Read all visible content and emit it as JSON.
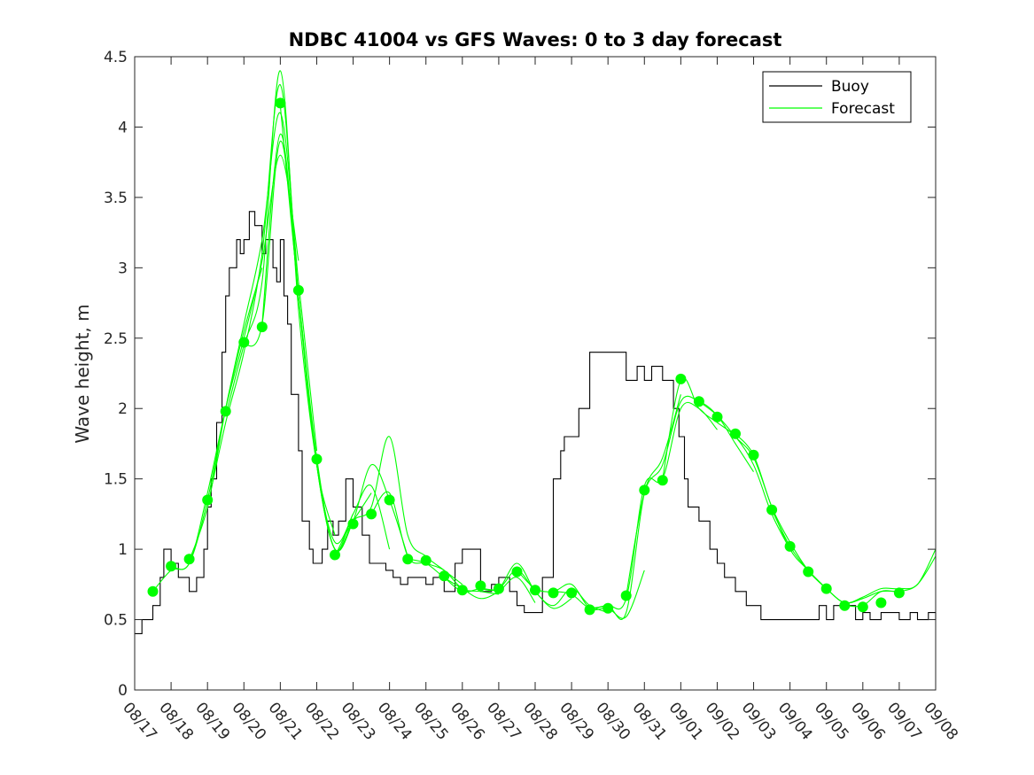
{
  "chart_data": {
    "type": "line",
    "title": "NDBC 41004 vs GFS Waves: 0 to 3 day forecast",
    "xlabel": "",
    "ylabel": "Wave height, m",
    "xlim": [
      0,
      22
    ],
    "ylim": [
      0,
      4.5
    ],
    "yticks": [
      0,
      0.5,
      1,
      1.5,
      2,
      2.5,
      3,
      3.5,
      4,
      4.5
    ],
    "ytick_labels": [
      "0",
      "0.5",
      "1",
      "1.5",
      "2",
      "2.5",
      "3",
      "3.5",
      "4",
      "4.5"
    ],
    "xtick_labels": [
      "08/17",
      "08/18",
      "08/19",
      "08/20",
      "08/21",
      "08/22",
      "08/23",
      "08/24",
      "08/25",
      "08/26",
      "08/27",
      "08/28",
      "08/29",
      "08/30",
      "08/31",
      "09/01",
      "09/02",
      "09/03",
      "09/04",
      "09/05",
      "09/06",
      "09/07",
      "09/08"
    ],
    "grid": false,
    "legend": {
      "position": "top-right",
      "entries": [
        {
          "label": "Buoy",
          "color": "#000000"
        },
        {
          "label": "Forecast",
          "color": "#00ff00"
        }
      ]
    },
    "series": [
      {
        "name": "Buoy",
        "color": "#000000",
        "x": [
          0,
          0.2,
          0.5,
          0.7,
          0.8,
          1.0,
          1.2,
          1.5,
          1.7,
          1.9,
          2.0,
          2.1,
          2.25,
          2.4,
          2.5,
          2.6,
          2.8,
          2.9,
          3.0,
          3.15,
          3.3,
          3.5,
          3.6,
          3.8,
          3.9,
          4.0,
          4.1,
          4.2,
          4.3,
          4.5,
          4.6,
          4.8,
          4.9,
          5.0,
          5.15,
          5.3,
          5.45,
          5.6,
          5.8,
          6.0,
          6.25,
          6.45,
          6.7,
          6.9,
          7.1,
          7.3,
          7.5,
          7.7,
          8.0,
          8.2,
          8.5,
          8.8,
          9.0,
          9.5,
          9.8,
          10.0,
          10.3,
          10.5,
          10.7,
          11.0,
          11.2,
          11.5,
          11.7,
          11.8,
          12.0,
          12.2,
          12.5,
          13.0,
          13.5,
          13.6,
          13.8,
          14.0,
          14.2,
          14.5,
          14.8,
          14.95,
          15.1,
          15.2,
          15.5,
          15.8,
          16.0,
          16.2,
          16.5,
          16.8,
          17.0,
          17.2,
          17.5,
          17.8,
          18.0,
          18.2,
          18.5,
          18.8,
          19.0,
          19.2,
          19.5,
          19.8,
          20.0,
          20.2,
          20.5,
          21.0,
          21.3,
          21.5,
          21.8,
          22.0
        ],
        "values": [
          0.4,
          0.5,
          0.6,
          0.8,
          1.0,
          0.9,
          0.8,
          0.7,
          0.8,
          1.0,
          1.3,
          1.5,
          1.9,
          2.4,
          2.8,
          3.0,
          3.2,
          3.1,
          3.2,
          3.4,
          3.3,
          3.1,
          3.2,
          3.0,
          2.9,
          3.2,
          2.8,
          2.6,
          2.1,
          1.7,
          1.2,
          1.0,
          0.9,
          0.9,
          1.0,
          1.2,
          1.1,
          1.2,
          1.5,
          1.3,
          1.1,
          0.9,
          0.9,
          0.85,
          0.8,
          0.75,
          0.8,
          0.8,
          0.75,
          0.8,
          0.7,
          0.9,
          1.0,
          0.7,
          0.75,
          0.8,
          0.7,
          0.6,
          0.55,
          0.55,
          0.8,
          1.5,
          1.7,
          1.8,
          1.8,
          2.0,
          2.4,
          2.4,
          2.2,
          2.2,
          2.3,
          2.2,
          2.3,
          2.2,
          2.0,
          1.8,
          1.5,
          1.3,
          1.2,
          1.0,
          0.9,
          0.8,
          0.7,
          0.6,
          0.6,
          0.5,
          0.5,
          0.5,
          0.5,
          0.5,
          0.5,
          0.6,
          0.5,
          0.6,
          0.6,
          0.5,
          0.55,
          0.5,
          0.55,
          0.5,
          0.55,
          0.5,
          0.55,
          0.5
        ]
      },
      {
        "name": "Forecast",
        "color": "#00ff00",
        "runs": [
          {
            "x": [
              0.5,
              1.0,
              1.5,
              2.0,
              2.5,
              3.0,
              3.5
            ],
            "values": [
              0.7,
              0.85,
              0.9,
              1.35,
              2.0,
              2.55,
              3.0
            ]
          },
          {
            "x": [
              1.0,
              1.5,
              2.0,
              2.5,
              3.0,
              3.5,
              4.0,
              4.5
            ],
            "values": [
              0.88,
              0.9,
              1.4,
              2.0,
              2.5,
              3.05,
              3.8,
              3.05
            ]
          },
          {
            "x": [
              1.5,
              2.0,
              2.5,
              3.0,
              3.5,
              4.0,
              4.5,
              5.0
            ],
            "values": [
              0.92,
              1.3,
              2.0,
              2.6,
              3.2,
              4.1,
              2.9,
              1.7
            ]
          },
          {
            "x": [
              2.0,
              2.5,
              3.0,
              3.5,
              4.0,
              4.5,
              5.0,
              5.5
            ],
            "values": [
              1.3,
              1.9,
              2.4,
              3.1,
              4.3,
              2.8,
              1.6,
              1.1
            ]
          },
          {
            "x": [
              2.5,
              3.0,
              3.5,
              4.0,
              4.5,
              5.0,
              5.5,
              6.0
            ],
            "values": [
              1.95,
              2.45,
              2.9,
              4.4,
              2.7,
              1.6,
              1.05,
              1.25
            ]
          },
          {
            "x": [
              3.0,
              3.5,
              4.0,
              4.5,
              5.0,
              5.5,
              6.0,
              6.5
            ],
            "values": [
              2.45,
              2.6,
              3.9,
              2.8,
              1.6,
              1.0,
              1.2,
              1.4
            ]
          },
          {
            "x": [
              3.5,
              4.0,
              4.5,
              5.0,
              5.5,
              6.0,
              6.5,
              7.0
            ],
            "values": [
              2.6,
              3.95,
              2.8,
              1.65,
              1.0,
              1.25,
              1.45,
              1.0
            ]
          },
          {
            "x": [
              4.0,
              4.5,
              5.0,
              5.5,
              6.0,
              6.5,
              7.0,
              7.5
            ],
            "values": [
              4.15,
              2.8,
              1.6,
              1.0,
              1.2,
              1.6,
              1.35,
              0.95
            ]
          },
          {
            "x": [
              5.5,
              6.0,
              6.5,
              7.0,
              7.5,
              8.0,
              8.5,
              9.0
            ],
            "values": [
              0.95,
              1.2,
              1.3,
              1.8,
              1.1,
              0.95,
              0.85,
              0.75
            ]
          },
          {
            "x": [
              6.5,
              7.0,
              7.5,
              8.0,
              8.5,
              9.0,
              9.5,
              10.0
            ],
            "values": [
              1.25,
              1.4,
              0.95,
              0.9,
              0.85,
              0.72,
              0.7,
              0.68
            ]
          },
          {
            "x": [
              7.5,
              8.0,
              8.5,
              9.0,
              9.5,
              10.0,
              10.5,
              11.0
            ],
            "values": [
              0.93,
              0.9,
              0.8,
              0.72,
              0.65,
              0.7,
              0.8,
              0.62
            ]
          },
          {
            "x": [
              8.5,
              9.0,
              9.5,
              10.0,
              10.5,
              11.0,
              11.5,
              12.0
            ],
            "values": [
              0.8,
              0.7,
              0.72,
              0.72,
              0.85,
              0.7,
              0.58,
              0.65
            ]
          },
          {
            "x": [
              9.5,
              10.0,
              10.5,
              11.0,
              11.5,
              12.0,
              12.5,
              13.0
            ],
            "values": [
              0.72,
              0.72,
              0.9,
              0.7,
              0.6,
              0.72,
              0.6,
              0.55
            ]
          },
          {
            "x": [
              10.5,
              11.0,
              11.5,
              12.0,
              12.5,
              13.0,
              13.5,
              14.0
            ],
            "values": [
              0.85,
              0.72,
              0.7,
              0.75,
              0.58,
              0.58,
              0.52,
              0.85
            ]
          },
          {
            "x": [
              11.5,
              12.0,
              12.5,
              13.0,
              13.5,
              14.0,
              14.5,
              15.0
            ],
            "values": [
              0.7,
              0.68,
              0.58,
              0.6,
              0.55,
              1.4,
              1.65,
              2.1
            ]
          },
          {
            "x": [
              12.5,
              13.0,
              13.5,
              14.0,
              14.5,
              15.0,
              15.5,
              16.0
            ],
            "values": [
              0.58,
              0.6,
              0.65,
              1.45,
              1.5,
              2.0,
              2.0,
              1.85
            ]
          },
          {
            "x": [
              13.5,
              14.0,
              14.5,
              15.0,
              15.5,
              16.0,
              16.5,
              17.0
            ],
            "values": [
              0.67,
              1.4,
              1.6,
              2.05,
              2.05,
              1.95,
              1.75,
              1.55
            ]
          },
          {
            "x": [
              14.5,
              15.0,
              15.5,
              16.0,
              16.5,
              17.0,
              17.5,
              18.0
            ],
            "values": [
              1.5,
              2.2,
              2.0,
              1.9,
              1.8,
              1.6,
              1.25,
              1.0
            ]
          },
          {
            "x": [
              15.5,
              16.0,
              16.5,
              17.0,
              17.5,
              18.0,
              18.5,
              19.0
            ],
            "values": [
              2.05,
              1.95,
              1.8,
              1.65,
              1.3,
              1.0,
              0.85,
              0.72
            ]
          },
          {
            "x": [
              16.5,
              17.0,
              17.5,
              18.0,
              18.5,
              19.0,
              19.5,
              20.0
            ],
            "values": [
              1.82,
              1.67,
              1.3,
              1.05,
              0.85,
              0.72,
              0.62,
              0.65
            ]
          },
          {
            "x": [
              17.5,
              18.0,
              18.5,
              19.0,
              19.5,
              20.0,
              20.5,
              21.0
            ],
            "values": [
              1.28,
              1.02,
              0.85,
              0.72,
              0.62,
              0.65,
              0.7,
              0.7
            ]
          },
          {
            "x": [
              18.5,
              19.0,
              19.5,
              20.0,
              20.5,
              21.0,
              21.5,
              22.0
            ],
            "values": [
              0.84,
              0.72,
              0.62,
              0.66,
              0.72,
              0.72,
              0.75,
              1.0
            ]
          },
          {
            "x": [
              19.5,
              20.0,
              20.5,
              21.0,
              21.5,
              22.0
            ],
            "values": [
              0.6,
              0.6,
              0.7,
              0.7,
              0.75,
              0.95
            ]
          }
        ],
        "markers": {
          "x": [
            0.5,
            1.0,
            1.5,
            2.0,
            2.5,
            3.0,
            3.5,
            4.0,
            4.5,
            5.0,
            5.5,
            6.0,
            6.5,
            7.0,
            7.5,
            8.0,
            8.5,
            9.0,
            9.5,
            10.0,
            10.5,
            11.0,
            11.5,
            12.0,
            12.5,
            13.0,
            13.5,
            14.0,
            14.5,
            15.0,
            15.5,
            16.0,
            16.5,
            17.0,
            17.5,
            18.0,
            18.5,
            19.0,
            19.5,
            20.0,
            20.5,
            21.0
          ],
          "values": [
            0.7,
            0.88,
            0.93,
            1.35,
            1.98,
            2.47,
            2.58,
            4.17,
            2.84,
            1.64,
            0.96,
            1.18,
            1.25,
            1.35,
            0.93,
            0.92,
            0.81,
            0.71,
            0.74,
            0.72,
            0.84,
            0.71,
            0.69,
            0.69,
            0.57,
            0.58,
            0.67,
            1.42,
            1.49,
            2.21,
            2.05,
            1.94,
            1.82,
            1.67,
            1.28,
            1.02,
            0.84,
            0.72,
            0.6,
            0.59,
            0.62,
            0.69
          ]
        }
      }
    ]
  }
}
